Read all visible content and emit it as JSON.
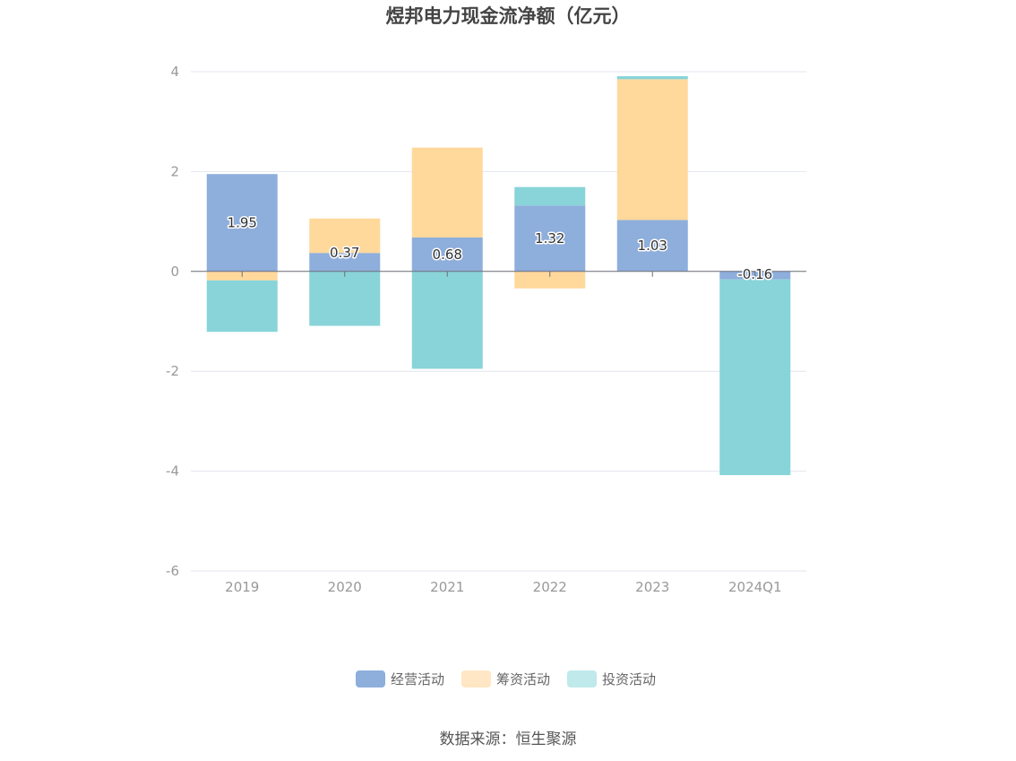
{
  "chart_data": {
    "type": "bar",
    "stacked": true,
    "title": "煜邦电力现金流净额（亿元）",
    "categories": [
      "2019",
      "2020",
      "2021",
      "2022",
      "2023",
      "2024Q1"
    ],
    "ylim": [
      -6,
      4
    ],
    "yticks": [
      4,
      2,
      0,
      -2,
      -4,
      -6
    ],
    "series": [
      {
        "name": "经营活动",
        "values": [
          1.95,
          0.37,
          0.68,
          1.32,
          1.03,
          -0.16
        ],
        "color": "#8eaedc"
      },
      {
        "name": "筹资活动",
        "values": [
          -0.18,
          0.69,
          1.8,
          -0.34,
          2.82,
          0.0
        ],
        "color": "#ffd89b"
      },
      {
        "name": "投资活动",
        "values": [
          -1.03,
          -1.09,
          -1.95,
          0.37,
          0.06,
          -3.92
        ],
        "color": "#88d4d8"
      }
    ],
    "data_labels": [
      "1.95",
      "0.37",
      "0.68",
      "1.32",
      "1.03",
      "-0.16"
    ],
    "legend": [
      {
        "name": "经营活动",
        "color": "#8eaedc"
      },
      {
        "name": "筹资活动",
        "color": "#ffe6c4"
      },
      {
        "name": "投资活动",
        "color": "#bfe9eb"
      }
    ],
    "source": "数据来源：恒生聚源"
  }
}
